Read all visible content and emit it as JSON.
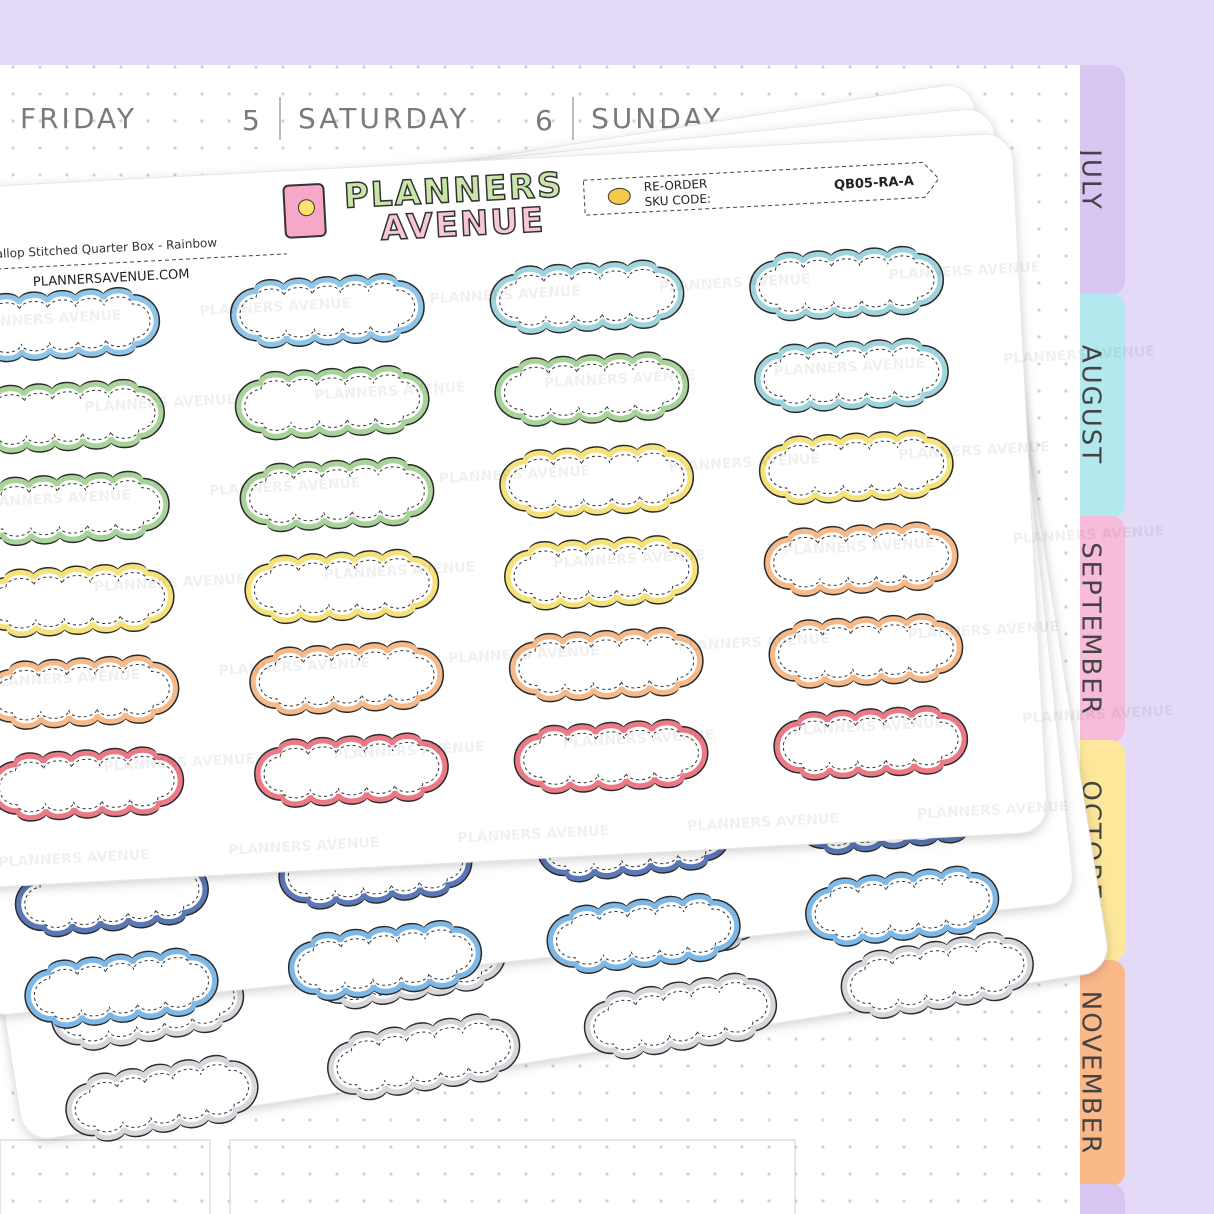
{
  "planner": {
    "days": [
      {
        "label": "FRIDAY"
      },
      {
        "number": "5",
        "label": "SATURDAY"
      },
      {
        "number": "6",
        "label": "SUNDAY"
      }
    ],
    "tabs": [
      "JULY",
      "AUGUST",
      "SEPTEMBER",
      "OCTOBER",
      "NOVEMBER"
    ]
  },
  "sheet": {
    "title": "Scallop Stitched Quarter Box - Rainbow",
    "website": "PLANNERSAVENUE.COM",
    "logo": [
      "PLANNERS",
      "AVENUE"
    ],
    "reorder": "RE-ORDER",
    "sku_label": "SKU CODE:",
    "sku": "QB05-RA-A",
    "watermark": "PLANNERS AVENUE"
  }
}
